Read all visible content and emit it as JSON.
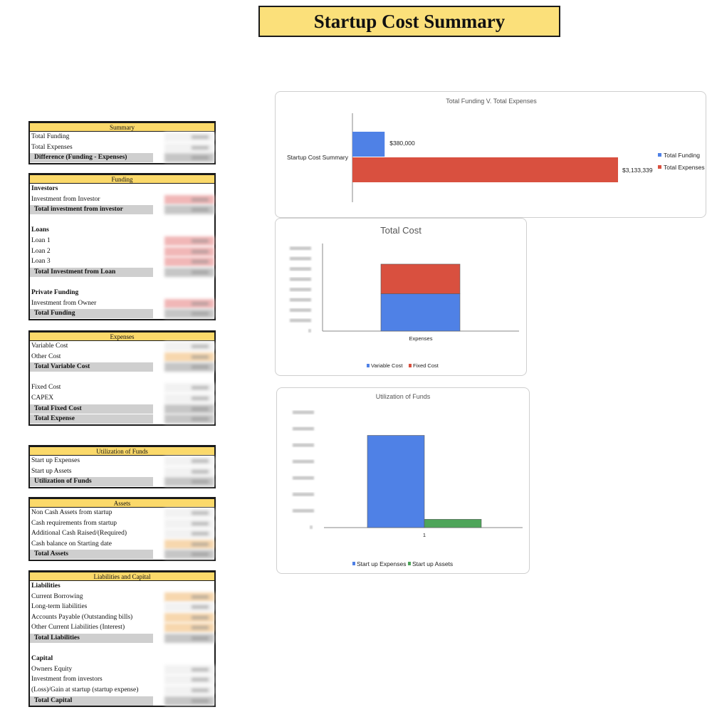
{
  "page_title": "Startup Cost Summary",
  "tables": [
    {
      "key": "summary",
      "top": 170,
      "header": "Summary",
      "rows": [
        {
          "label": "Total Funding",
          "type": "item",
          "shade": "plain"
        },
        {
          "label": "Total Expenses",
          "type": "item",
          "shade": "plain"
        },
        {
          "label": "Difference (Funding - Expenses)",
          "type": "total",
          "shade": "grey"
        }
      ]
    },
    {
      "key": "funding",
      "top": 243,
      "header": "Funding",
      "rows": [
        {
          "label": "Investors",
          "type": "section"
        },
        {
          "label": "Investment from Investor",
          "type": "item",
          "shade": "pink"
        },
        {
          "label": "Total investment from investor",
          "type": "total",
          "shade": "grey"
        },
        {
          "label": "",
          "type": "spacer"
        },
        {
          "label": "Loans",
          "type": "section"
        },
        {
          "label": "Loan 1",
          "type": "item",
          "shade": "pink"
        },
        {
          "label": "Loan 2",
          "type": "item",
          "shade": "pink"
        },
        {
          "label": "Loan 3",
          "type": "item",
          "shade": "pink"
        },
        {
          "label": "Total Investment from Loan",
          "type": "total",
          "shade": "grey"
        },
        {
          "label": "",
          "type": "spacer"
        },
        {
          "label": "Private Funding",
          "type": "section"
        },
        {
          "label": "Investment from Owner",
          "type": "item",
          "shade": "pink"
        },
        {
          "label": "Total Funding",
          "type": "total",
          "shade": "grey"
        }
      ]
    },
    {
      "key": "expenses",
      "top": 464,
      "header": "Expenses",
      "rows": [
        {
          "label": "Variable Cost",
          "type": "item",
          "shade": "plain"
        },
        {
          "label": "Other Cost",
          "type": "item",
          "shade": "peach"
        },
        {
          "label": "Total Variable Cost",
          "type": "total",
          "shade": "grey"
        },
        {
          "label": "",
          "type": "spacer"
        },
        {
          "label": "Fixed Cost",
          "type": "item",
          "shade": "plain"
        },
        {
          "label": "CAPEX",
          "type": "item",
          "shade": "plain"
        },
        {
          "label": "Total Fixed Cost",
          "type": "total",
          "shade": "grey"
        },
        {
          "label": "Total Expense",
          "type": "total",
          "shade": "grey"
        }
      ]
    },
    {
      "key": "utilization",
      "top": 625,
      "header": "Utilization of Funds",
      "rows": [
        {
          "label": "Start up Expenses",
          "type": "item",
          "shade": "plain"
        },
        {
          "label": "Start up Assets",
          "type": "item",
          "shade": "plain"
        },
        {
          "label": "Utilization of Funds",
          "type": "total",
          "shade": "grey"
        }
      ]
    },
    {
      "key": "assets",
      "top": 698,
      "header": "Assets",
      "rows": [
        {
          "label": "Non Cash Assets from startup",
          "type": "item",
          "shade": "plain"
        },
        {
          "label": "Cash requirements from startup",
          "type": "item",
          "shade": "plain"
        },
        {
          "label": "Additional Cash Raised/(Required)",
          "type": "item",
          "shade": "plain"
        },
        {
          "label": "Cash balance on Starting date",
          "type": "item",
          "shade": "peach"
        },
        {
          "label": "Total Assets",
          "type": "total",
          "shade": "grey"
        }
      ]
    },
    {
      "key": "liabilities",
      "top": 801,
      "header": "Liabilities and Capital",
      "rows": [
        {
          "label": "Liabilities",
          "type": "section"
        },
        {
          "label": "Current Borrowing",
          "type": "item",
          "shade": "peach"
        },
        {
          "label": "Long-term liabilities",
          "type": "item",
          "shade": "plain"
        },
        {
          "label": "Accounts Payable (Outstanding bills)",
          "type": "item",
          "shade": "peach"
        },
        {
          "label": "Other Current Liabilities (Interest)",
          "type": "item",
          "shade": "peach"
        },
        {
          "label": "Total Liabilities",
          "type": "total",
          "shade": "grey"
        },
        {
          "label": "",
          "type": "spacer"
        },
        {
          "label": "Capital",
          "type": "section"
        },
        {
          "label": "Owners Equity",
          "type": "item",
          "shade": "plain"
        },
        {
          "label": "Investment from investors",
          "type": "item",
          "shade": "plain"
        },
        {
          "label": "(Loss)/Gain at startup (startup expense)",
          "type": "item",
          "shade": "plain"
        },
        {
          "label": "Total Capital",
          "type": "total",
          "shade": "grey"
        }
      ]
    }
  ],
  "colors": {
    "blue": "#4f81e6",
    "red": "#d9503f",
    "green": "#4ea55a",
    "header_yellow": "#fbd96a"
  },
  "chart_data": [
    {
      "type": "bar",
      "orientation": "horizontal",
      "title": "Total Funding V. Total Expenses",
      "categories": [
        "Startup Cost Summary"
      ],
      "series": [
        {
          "name": "Total Funding",
          "values": [
            380000
          ],
          "label": "$380,000"
        },
        {
          "name": "Total Expenses",
          "values": [
            3133339
          ],
          "label": "$3,133,339"
        }
      ],
      "xlim": [
        0,
        3133339
      ],
      "legend": "right"
    },
    {
      "type": "bar",
      "stacked": true,
      "title": "Total Cost",
      "categories": [
        "Expenses"
      ],
      "series": [
        {
          "name": "Variable Cost",
          "values": [
            1920000
          ]
        },
        {
          "name": "Fixed Cost",
          "values": [
            1520000
          ]
        }
      ],
      "ylim": [
        0,
        4500000
      ],
      "legend": "bottom"
    },
    {
      "type": "bar",
      "title": "Utilization of Funds",
      "categories": [
        "1"
      ],
      "series": [
        {
          "name": "Start up Expenses",
          "values": [
            3120000
          ]
        },
        {
          "name": "Start up Assets",
          "values": [
            280000
          ]
        }
      ],
      "ylim": [
        0,
        4000000
      ],
      "legend": "bottom"
    }
  ]
}
